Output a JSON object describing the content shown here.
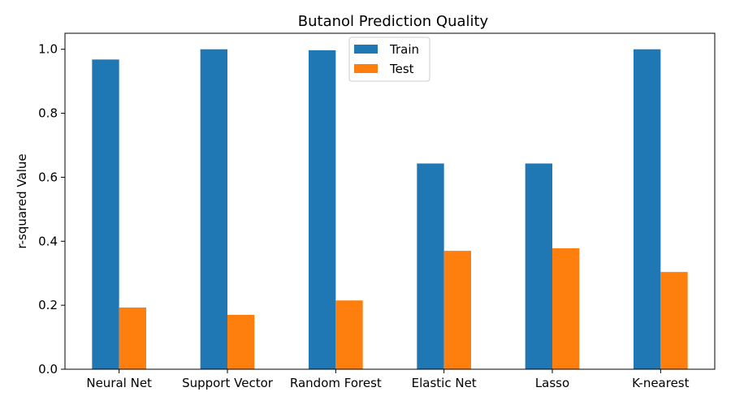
{
  "chart_data": {
    "type": "bar",
    "title": "Butanol Prediction Quality",
    "xlabel": "",
    "ylabel": "r-squared Value",
    "ylim": [
      0,
      1.05
    ],
    "yticks": [
      0.0,
      0.2,
      0.4,
      0.6,
      0.8,
      1.0
    ],
    "ytick_labels": [
      "0.0",
      "0.2",
      "0.4",
      "0.6",
      "0.8",
      "1.0"
    ],
    "categories": [
      "Neural Net",
      "Support Vector",
      "Random Forest",
      "Elastic Net",
      "Lasso",
      "K-nearest"
    ],
    "series": [
      {
        "name": "Train",
        "color": "#1f77b4",
        "values": [
          0.968,
          1.0,
          0.997,
          0.643,
          0.643,
          1.0
        ]
      },
      {
        "name": "Test",
        "color": "#ff7f0e",
        "values": [
          0.193,
          0.17,
          0.215,
          0.37,
          0.378,
          0.304
        ]
      }
    ],
    "grid": false,
    "legend_position": "top-center"
  }
}
